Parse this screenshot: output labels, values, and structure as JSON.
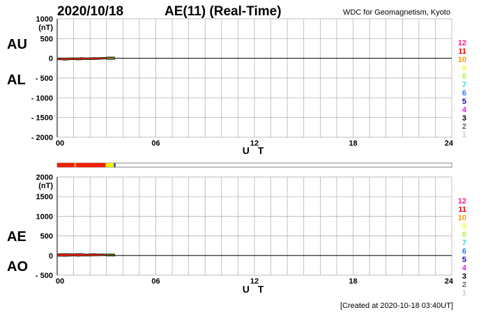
{
  "header": {
    "date": "2020/10/18",
    "title": "AE(11) (Real-Time)",
    "source": "WDC for Geomagnetism, Kyoto"
  },
  "footer": {
    "created": "[Created at 2020-10-18 03:40UT]"
  },
  "x_axis": {
    "label": "U T",
    "ticks": [
      "00",
      "06",
      "12",
      "18",
      "24"
    ],
    "range_hours": [
      0,
      24
    ]
  },
  "station_legend": {
    "labels": [
      "12",
      "11",
      "10",
      "9",
      "8",
      "7",
      "6",
      "5",
      "4",
      "3",
      "2",
      "1"
    ],
    "colors": [
      "#ff1493",
      "#ee0000",
      "#ff9900",
      "#ffff00",
      "#aaff33",
      "#22dddd",
      "#1e7eff",
      "#2200bb",
      "#dd22dd",
      "#000000",
      "#666666",
      "#cccccc"
    ]
  },
  "chart_data": [
    {
      "type": "line",
      "panel": "AU/AL",
      "units": "(nT)",
      "series_labels": [
        "AU",
        "AL"
      ],
      "ylim": [
        -2000,
        1000
      ],
      "yticks": [
        "1000",
        "500",
        "0",
        "- 500",
        "- 1000",
        "- 1500",
        "- 2000"
      ],
      "ytick_values": [
        1000,
        500,
        0,
        -500,
        -1000,
        -1500,
        -2000
      ],
      "grid": true,
      "series": [
        {
          "name": "AU",
          "color": "#dd2200",
          "x": [
            0.0,
            0.25,
            0.5,
            0.75,
            1.0,
            1.25,
            1.5,
            1.75,
            2.0,
            2.25,
            2.5,
            2.75,
            3.0,
            3.25,
            3.5
          ],
          "y": [
            5,
            8,
            4,
            10,
            12,
            8,
            15,
            10,
            12,
            18,
            14,
            20,
            22,
            18,
            15
          ]
        },
        {
          "name": "AL",
          "color": "#dd2200",
          "x": [
            0.0,
            0.25,
            0.5,
            0.75,
            1.0,
            1.25,
            1.5,
            1.75,
            2.0,
            2.25,
            2.5,
            2.75,
            3.0,
            3.25,
            3.5
          ],
          "y": [
            -35,
            -40,
            -45,
            -38,
            -30,
            -42,
            -35,
            -28,
            -32,
            -30,
            -25,
            -20,
            -15,
            -12,
            -10
          ]
        }
      ]
    },
    {
      "type": "line",
      "panel": "AE/AO",
      "units": "(nT)",
      "series_labels": [
        "AE",
        "AO"
      ],
      "ylim": [
        -500,
        2000
      ],
      "yticks": [
        "2000",
        "1500",
        "1000",
        "500",
        "0",
        "- 500"
      ],
      "ytick_values": [
        2000,
        1500,
        1000,
        500,
        0,
        -500
      ],
      "grid": true,
      "series": [
        {
          "name": "AE",
          "color": "#dd2200",
          "x": [
            0.0,
            0.25,
            0.5,
            0.75,
            1.0,
            1.25,
            1.5,
            1.75,
            2.0,
            2.25,
            2.5,
            2.75,
            3.0,
            3.25,
            3.5
          ],
          "y": [
            40,
            48,
            49,
            48,
            42,
            50,
            50,
            38,
            44,
            48,
            39,
            40,
            37,
            30,
            25
          ]
        },
        {
          "name": "AO",
          "color": "#dd2200",
          "x": [
            0.0,
            0.25,
            0.5,
            0.75,
            1.0,
            1.25,
            1.5,
            1.75,
            2.0,
            2.25,
            2.5,
            2.75,
            3.0,
            3.25,
            3.5
          ],
          "y": [
            -15,
            -16,
            -20,
            -14,
            -9,
            -17,
            -10,
            -9,
            -10,
            -6,
            -5,
            0,
            3,
            3,
            2
          ]
        }
      ]
    },
    {
      "type": "bar",
      "panel": "station-count",
      "segments": [
        {
          "start": 0.0,
          "end": 1.05,
          "color": "#ee2200"
        },
        {
          "start": 1.05,
          "end": 1.15,
          "color": "#ff9900"
        },
        {
          "start": 1.15,
          "end": 2.95,
          "color": "#ee2200"
        },
        {
          "start": 2.95,
          "end": 3.45,
          "color": "#ffee00"
        },
        {
          "start": 3.45,
          "end": 3.55,
          "color": "#2244aa"
        }
      ],
      "xlim": [
        0,
        24
      ]
    }
  ]
}
